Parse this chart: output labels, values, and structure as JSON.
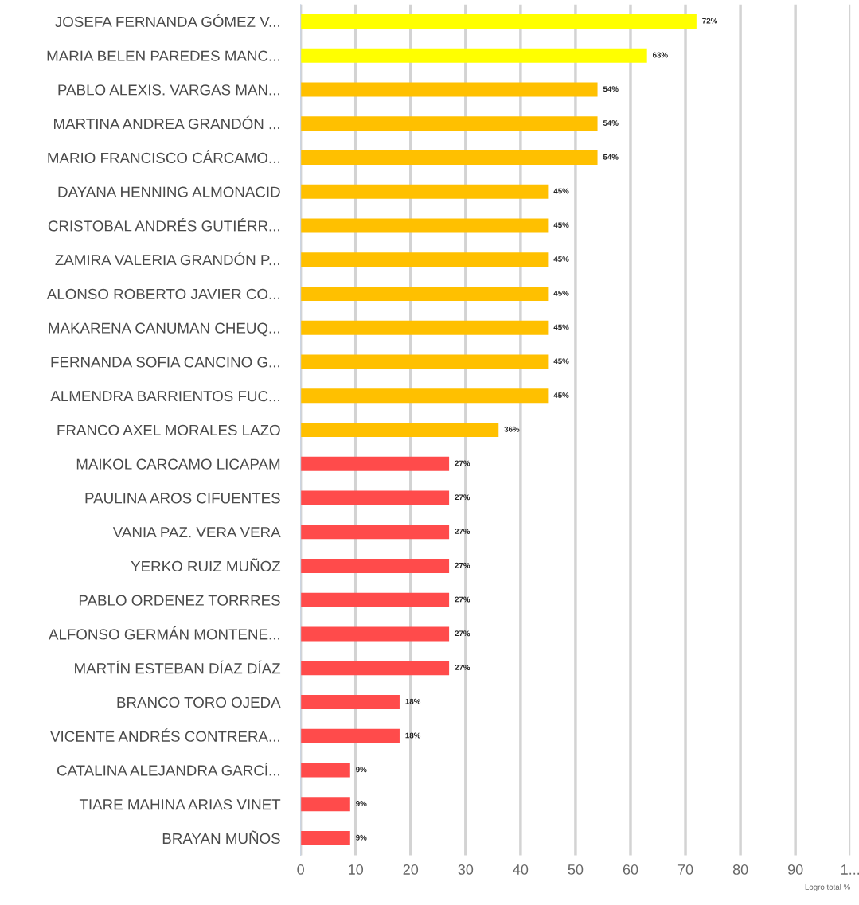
{
  "chart_data": {
    "type": "bar",
    "orientation": "horizontal",
    "xlabel": "Logro total %",
    "categories": [
      "JOSEFA FERNANDA GÓMEZ V...",
      "MARIA BELEN PAREDES MANC...",
      "PABLO ALEXIS. VARGAS MAN...",
      "MARTINA ANDREA GRANDÓN ...",
      "MARIO FRANCISCO CÁRCAMO...",
      "DAYANA HENNING ALMONACID",
      "CRISTOBAL ANDRÉS GUTIÉRR...",
      "ZAMIRA VALERIA GRANDÓN P...",
      "ALONSO ROBERTO JAVIER CO...",
      "MAKARENA CANUMAN CHEUQ...",
      "FERNANDA SOFIA CANCINO G...",
      "ALMENDRA BARRIENTOS FUC...",
      "FRANCO AXEL MORALES LAZO",
      "MAIKOL CARCAMO LICAPAM",
      "PAULINA AROS CIFUENTES",
      "VANIA PAZ. VERA VERA",
      "YERKO RUIZ MUÑOZ",
      "PABLO ORDENEZ TORRRES",
      "ALFONSO GERMÁN MONTENE...",
      "MARTÍN ESTEBAN DÍAZ DÍAZ",
      "BRANCO TORO OJEDA",
      "VICENTE ANDRÉS CONTRERA...",
      "CATALINA ALEJANDRA GARCÍ...",
      "TIARE MAHINA ARIAS VINET",
      "BRAYAN MUÑOS"
    ],
    "values": [
      72,
      63,
      54,
      54,
      54,
      45,
      45,
      45,
      45,
      45,
      45,
      45,
      36,
      27,
      27,
      27,
      27,
      27,
      27,
      27,
      18,
      18,
      9,
      9,
      9
    ],
    "value_labels": [
      "72%",
      "63%",
      "54%",
      "54%",
      "54%",
      "45%",
      "45%",
      "45%",
      "45%",
      "45%",
      "45%",
      "45%",
      "36%",
      "27%",
      "27%",
      "27%",
      "27%",
      "27%",
      "27%",
      "27%",
      "18%",
      "18%",
      "9%",
      "9%",
      "9%"
    ],
    "colors": [
      "#ffff00",
      "#ffff00",
      "#ffc000",
      "#ffc000",
      "#ffc000",
      "#ffc000",
      "#ffc000",
      "#ffc000",
      "#ffc000",
      "#ffc000",
      "#ffc000",
      "#ffc000",
      "#ffc000",
      "#ff4b4b",
      "#ff4b4b",
      "#ff4b4b",
      "#ff4b4b",
      "#ff4b4b",
      "#ff4b4b",
      "#ff4b4b",
      "#ff4b4b",
      "#ff4b4b",
      "#ff4b4b",
      "#ff4b4b",
      "#ff4b4b"
    ],
    "xlim": [
      0,
      100
    ],
    "xticks": [
      0,
      10,
      20,
      30,
      40,
      50,
      60,
      70,
      80,
      90,
      {
        "value": 100,
        "label": "1..."
      }
    ],
    "grid": "x"
  }
}
